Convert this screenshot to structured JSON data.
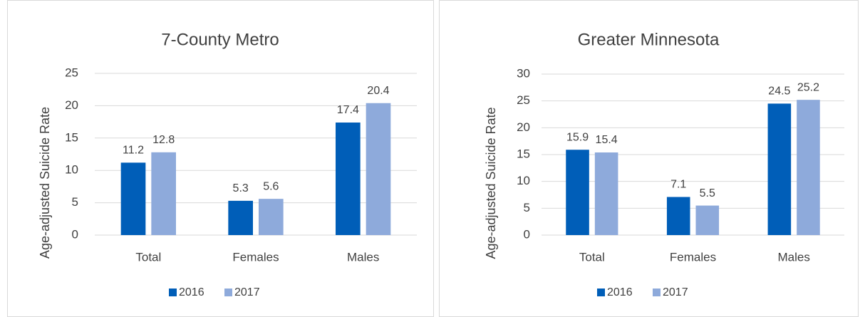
{
  "chart_data": [
    {
      "type": "bar",
      "title": "7-County Metro",
      "y_label": "Age-adjusted Suicide Rate",
      "categories": [
        "Total",
        "Females",
        "Males"
      ],
      "series": [
        {
          "name": "2016",
          "color": "#005eb8",
          "values": [
            11.2,
            5.3,
            17.4
          ]
        },
        {
          "name": "2017",
          "color": "#8eaadb",
          "values": [
            12.8,
            5.6,
            20.4
          ]
        }
      ],
      "ylim": [
        0,
        25
      ],
      "yticks": [
        0,
        5,
        10,
        15,
        20,
        25
      ],
      "grid": true,
      "legend": "bottom"
    },
    {
      "type": "bar",
      "title": "Greater Minnesota",
      "y_label": "Age-adjusted Suicide Rate",
      "categories": [
        "Total",
        "Females",
        "Males"
      ],
      "series": [
        {
          "name": "2016",
          "color": "#005eb8",
          "values": [
            15.9,
            7.1,
            24.5
          ]
        },
        {
          "name": "2017",
          "color": "#8eaadb",
          "values": [
            15.4,
            5.5,
            25.2
          ]
        }
      ],
      "ylim": [
        0,
        30
      ],
      "yticks": [
        0,
        5,
        10,
        15,
        20,
        25,
        30
      ],
      "grid": true,
      "legend": "bottom"
    }
  ]
}
